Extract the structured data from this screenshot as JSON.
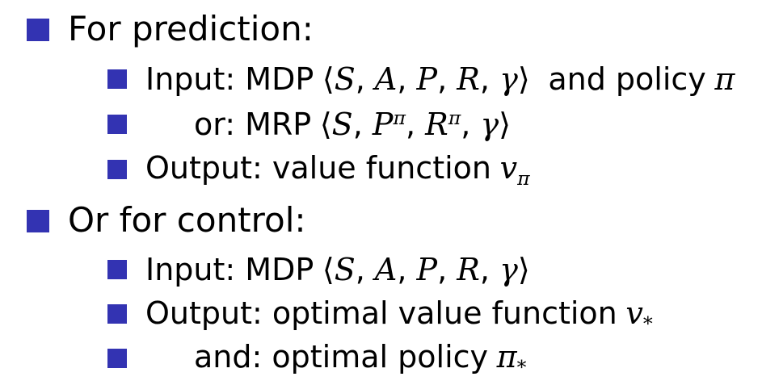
{
  "slide": {
    "colors": {
      "bullet": "#3333b2",
      "text": "#000000",
      "background": "#ffffff"
    },
    "sections": [
      {
        "heading": "For prediction:",
        "items": [
          {
            "prefix": "Input: MDP",
            "open": "⟨",
            "parts": [
              "S",
              "A",
              "P",
              "R",
              "γ"
            ],
            "close": "⟩",
            "suffix": "and policy",
            "tail": "π"
          },
          {
            "prefix": "or: MRP",
            "open": "⟨",
            "s": "S",
            "p": "P",
            "p_sup": "π",
            "r": "R",
            "r_sup": "π",
            "g": "γ",
            "close": "⟩"
          },
          {
            "prefix": "Output: value function",
            "sym": "v",
            "sub": "π"
          }
        ]
      },
      {
        "heading": "Or for control:",
        "items": [
          {
            "prefix": "Input: MDP",
            "open": "⟨",
            "parts": [
              "S",
              "A",
              "P",
              "R",
              "γ"
            ],
            "close": "⟩"
          },
          {
            "prefix": "Output: optimal value function",
            "sym": "v",
            "sub": "*"
          },
          {
            "prefix": "and: optimal policy",
            "sym": "π",
            "sub": "*"
          }
        ]
      }
    ]
  }
}
